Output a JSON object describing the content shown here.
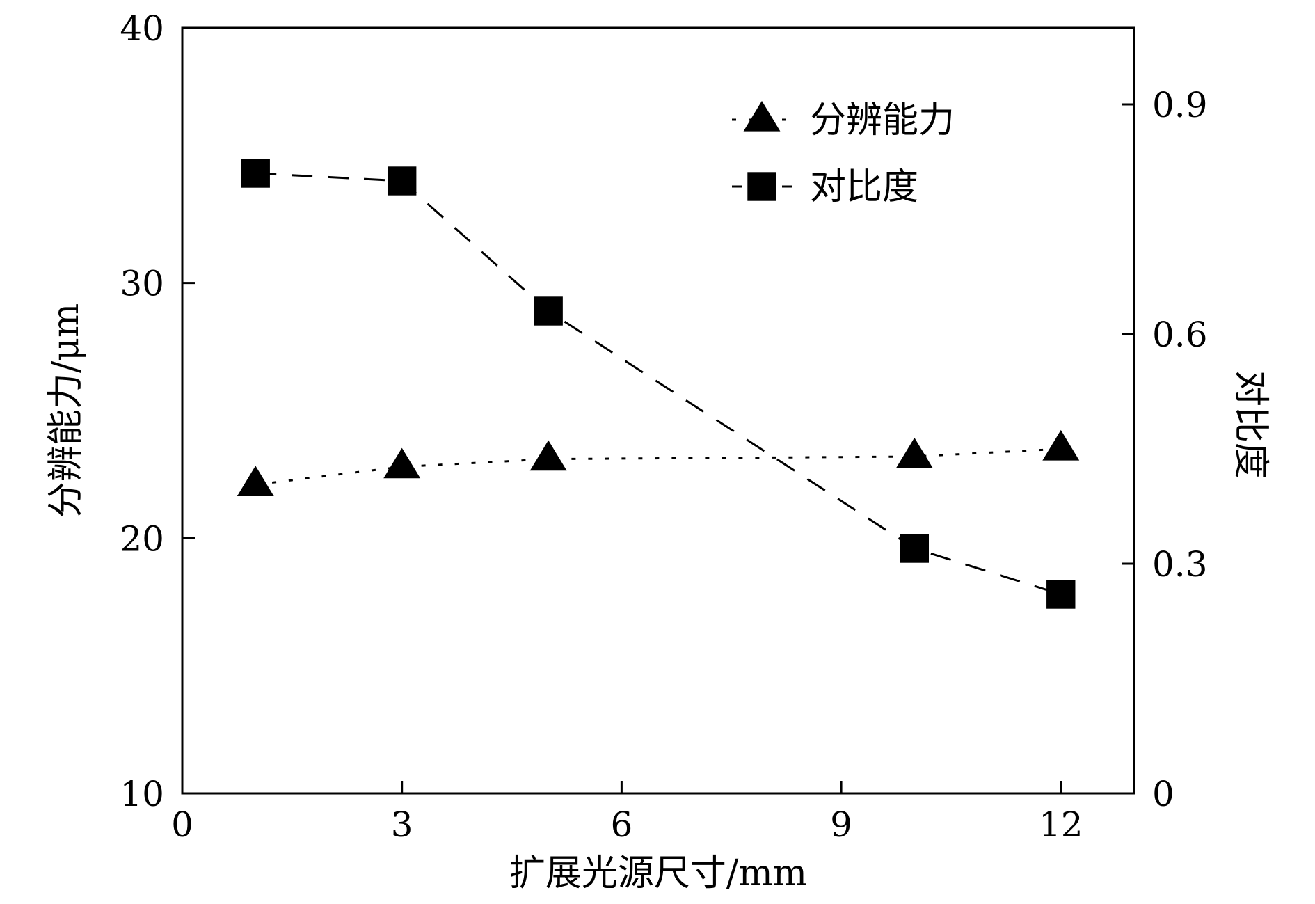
{
  "chart_data": {
    "type": "line",
    "x": [
      1,
      3,
      5,
      10,
      12
    ],
    "x_ticks": [
      0,
      3,
      6,
      9,
      12
    ],
    "xlim": [
      0,
      13
    ],
    "xlabel": "扩展光源尺寸/mm",
    "y_left": {
      "label": "分辨能力/μm",
      "lim": [
        10,
        40
      ],
      "ticks": [
        10,
        20,
        30,
        40
      ]
    },
    "y_right": {
      "label": "对比度",
      "lim": [
        0,
        1.0
      ],
      "ticks": [
        "0",
        "0.3",
        "0.6",
        "0.9"
      ],
      "tick_values": [
        0,
        0.3,
        0.6,
        0.9
      ]
    },
    "series": [
      {
        "name": "分辨能力",
        "axis": "left",
        "marker": "triangle",
        "line_style": "dotted",
        "values": [
          22.1,
          22.8,
          23.1,
          23.2,
          23.5
        ]
      },
      {
        "name": "对比度",
        "axis": "right",
        "marker": "square",
        "line_style": "dashed",
        "values": [
          0.81,
          0.8,
          0.63,
          0.32,
          0.26
        ]
      }
    ],
    "legend_position": "top-right",
    "grid": false
  }
}
